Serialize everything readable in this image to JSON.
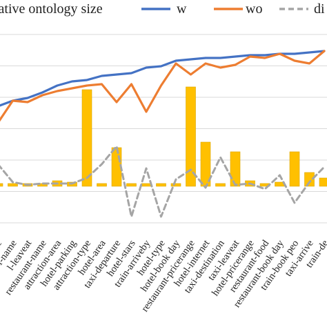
{
  "chart_data": {
    "type": "bar",
    "legend": {
      "title": "lative ontology size",
      "entries": [
        {
          "label": "w",
          "color": "#4472C4",
          "style": "solid-line"
        },
        {
          "label": "wo",
          "color": "#ED7D31",
          "style": "solid-line"
        },
        {
          "label": "di",
          "color": "#A5A5A5",
          "style": "dashed-line"
        }
      ],
      "placement": "top"
    },
    "categories": [
      "e",
      "l-name",
      "l-leaveat",
      "restaurant-name",
      "attraction-area",
      "hotel-parking",
      "attraction-type",
      "hotel-area",
      "taxi-departure",
      "hotel-stars",
      "train-arriveby",
      "hotel-type",
      "hotel-book day",
      "restaurant-pricerange",
      "hotel-internet",
      "taxi-destination",
      "taxi-leaveat",
      "hotel-pricerange",
      "restaurant-food",
      "restaurant-book day",
      "train-book peo",
      "taxi-arrive",
      "train-de"
    ],
    "series": [
      {
        "name": "w",
        "kind": "line",
        "color": "#4472C4",
        "values": [
          0.22,
          0.26,
          0.28,
          0.32,
          0.37,
          0.4,
          0.41,
          0.44,
          0.45,
          0.46,
          0.5,
          0.51,
          0.55,
          0.56,
          0.57,
          0.57,
          0.58,
          0.59,
          0.59,
          0.6,
          0.6,
          0.61,
          0.62
        ]
      },
      {
        "name": "wo",
        "kind": "line",
        "color": "#ED7D31",
        "values": [
          0.1,
          0.26,
          0.25,
          0.3,
          0.33,
          0.35,
          0.37,
          0.38,
          0.25,
          0.38,
          0.18,
          0.37,
          0.53,
          0.45,
          0.53,
          0.5,
          0.52,
          0.58,
          0.57,
          0.6,
          0.55,
          0.53,
          0.62
        ]
      },
      {
        "name": "di",
        "kind": "dashed-line",
        "color": "#A5A5A5",
        "values": [
          -0.2,
          -0.33,
          -0.35,
          -0.34,
          -0.34,
          -0.34,
          -0.3,
          -0.2,
          -0.07,
          -0.58,
          -0.23,
          -0.58,
          -0.31,
          -0.24,
          -0.37,
          -0.15,
          -0.35,
          -0.34,
          -0.38,
          -0.28,
          -0.48,
          -0.33,
          -0.22
        ]
      },
      {
        "name": "",
        "kind": "bar",
        "color": "#FFC000",
        "values": [
          0.02,
          0.02,
          0.02,
          0.02,
          0.04,
          0.03,
          0.7,
          0.02,
          0.28,
          0.02,
          0.02,
          0.02,
          0.02,
          0.72,
          0.32,
          0.02,
          0.25,
          0.04,
          0.02,
          0.03,
          0.25,
          0.1,
          0.06
        ]
      }
    ],
    "ylim": [
      -0.7,
      0.8
    ],
    "grid": true,
    "xlabel": "",
    "ylabel": ""
  }
}
